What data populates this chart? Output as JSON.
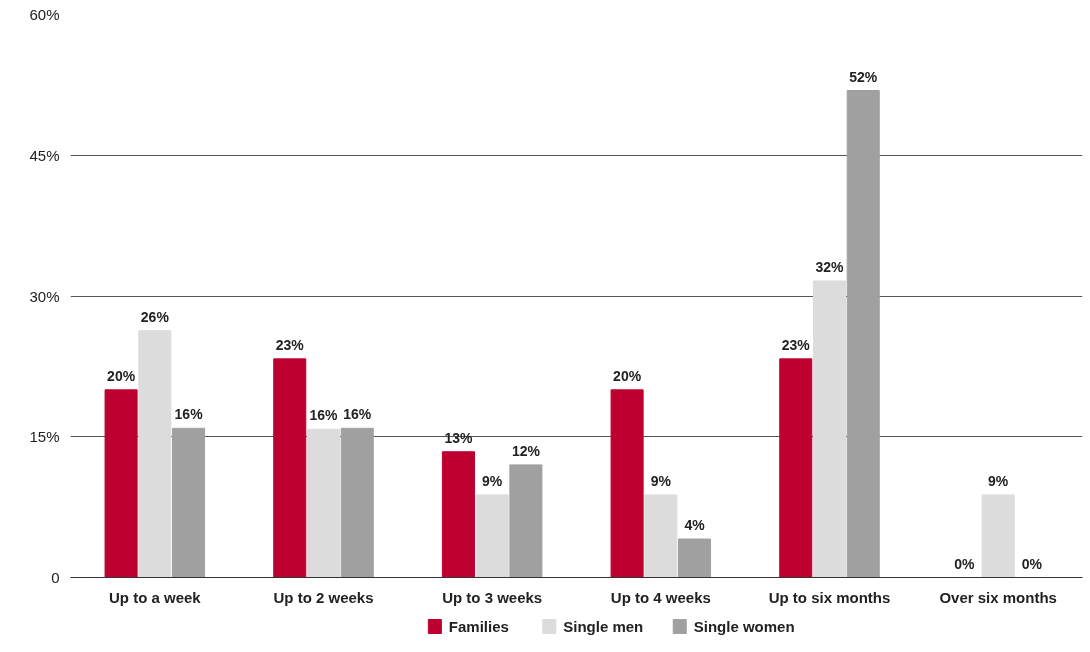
{
  "chart_data": {
    "type": "bar",
    "categories": [
      "Up to a week",
      "Up to 2 weeks",
      "Up to 3 weeks",
      "Up to 4 weeks",
      "Up to six months",
      "Over six months"
    ],
    "series": [
      {
        "name": "Families",
        "color": "#be0030",
        "values": [
          20.0,
          23.3,
          13.4,
          20.0,
          23.3,
          0
        ],
        "value_labels": [
          "20%",
          "23%",
          "13%",
          "20%",
          "23%",
          "0%"
        ]
      },
      {
        "name": "Single men",
        "color": "#dcdcdc",
        "values": [
          26.3,
          15.8,
          8.8,
          8.8,
          31.6,
          8.8
        ],
        "value_labels": [
          "26%",
          "16%",
          "9%",
          "9%",
          "32%",
          "9%"
        ]
      },
      {
        "name": "Single women",
        "color": "#a0a0a0",
        "values": [
          15.9,
          15.9,
          12.0,
          4.1,
          51.9,
          0
        ],
        "value_labels": [
          "16%",
          "16%",
          "12%",
          "4%",
          "52%",
          "0%"
        ]
      }
    ],
    "ylim": [
      0,
      60
    ],
    "yticks": [
      0,
      {
        "value": 15,
        "label": "15%"
      },
      {
        "value": 30,
        "label": "30%"
      },
      {
        "value": 45,
        "label": "45%"
      },
      {
        "value": 60,
        "label": "60%"
      }
    ],
    "grid": "y",
    "legend": "bottom"
  }
}
